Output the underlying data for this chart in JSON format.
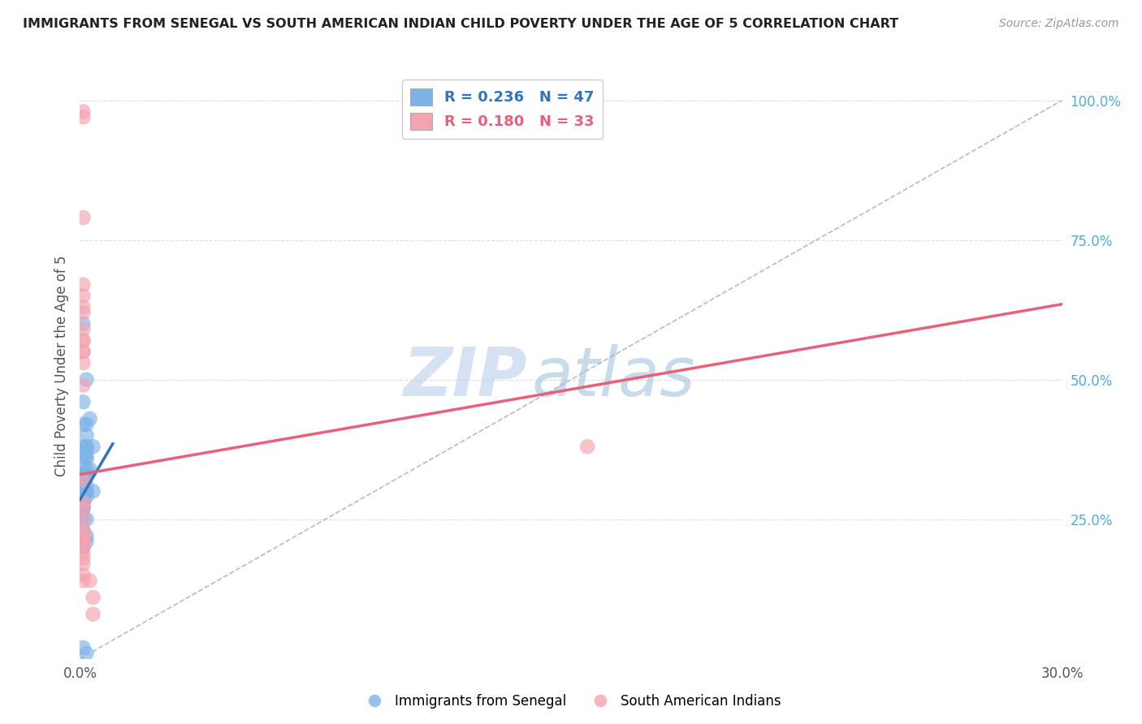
{
  "title": "IMMIGRANTS FROM SENEGAL VS SOUTH AMERICAN INDIAN CHILD POVERTY UNDER THE AGE OF 5 CORRELATION CHART",
  "source": "Source: ZipAtlas.com",
  "ylabel": "Child Poverty Under the Age of 5",
  "y_ticks": [
    0.0,
    0.25,
    0.5,
    0.75,
    1.0
  ],
  "y_tick_labels": [
    "",
    "25.0%",
    "50.0%",
    "75.0%",
    "100.0%"
  ],
  "xlim": [
    0.0,
    0.3
  ],
  "ylim": [
    0.0,
    1.05
  ],
  "blue_R": 0.236,
  "blue_N": 47,
  "pink_R": 0.18,
  "pink_N": 33,
  "blue_color": "#7EB3E8",
  "pink_color": "#F4A3B0",
  "blue_line_color": "#3375BB",
  "pink_line_color": "#E8607A",
  "legend_label_blue": "Immigrants from Senegal",
  "legend_label_pink": "South American Indians",
  "watermark_zip": "ZIP",
  "watermark_atlas": "atlas",
  "blue_line_x": [
    0.0,
    0.01
  ],
  "blue_line_y": [
    0.285,
    0.385
  ],
  "pink_line_x": [
    0.0,
    0.3
  ],
  "pink_line_y": [
    0.33,
    0.635
  ],
  "blue_scatter_x": [
    0.002,
    0.002,
    0.002,
    0.001,
    0.001,
    0.002,
    0.002,
    0.001,
    0.001,
    0.002,
    0.001,
    0.001,
    0.001,
    0.002,
    0.001,
    0.002,
    0.002,
    0.002,
    0.001,
    0.001,
    0.002,
    0.001,
    0.001,
    0.001,
    0.001,
    0.002,
    0.002,
    0.001,
    0.001,
    0.002,
    0.003,
    0.001,
    0.004,
    0.003,
    0.001,
    0.002,
    0.001,
    0.002,
    0.001,
    0.001,
    0.001,
    0.002,
    0.001,
    0.002,
    0.004,
    0.001,
    0.002
  ],
  "blue_scatter_y": [
    0.42,
    0.38,
    0.5,
    0.6,
    0.46,
    0.38,
    0.36,
    0.42,
    0.33,
    0.37,
    0.3,
    0.32,
    0.28,
    0.3,
    0.29,
    0.34,
    0.36,
    0.33,
    0.38,
    0.3,
    0.31,
    0.33,
    0.28,
    0.27,
    0.29,
    0.33,
    0.3,
    0.28,
    0.32,
    0.4,
    0.34,
    0.35,
    0.38,
    0.43,
    0.27,
    0.29,
    0.25,
    0.25,
    0.27,
    0.28,
    0.23,
    0.22,
    0.2,
    0.21,
    0.3,
    0.02,
    0.01
  ],
  "pink_scatter_x": [
    0.001,
    0.001,
    0.001,
    0.001,
    0.001,
    0.001,
    0.001,
    0.001,
    0.001,
    0.001,
    0.001,
    0.001,
    0.001,
    0.001,
    0.001,
    0.001,
    0.001,
    0.001,
    0.001,
    0.001,
    0.001,
    0.001,
    0.001,
    0.001,
    0.001,
    0.001,
    0.001,
    0.001,
    0.001,
    0.155,
    0.003,
    0.004,
    0.004
  ],
  "pink_scatter_y": [
    0.97,
    0.98,
    0.79,
    0.67,
    0.63,
    0.62,
    0.59,
    0.57,
    0.57,
    0.65,
    0.53,
    0.55,
    0.49,
    0.55,
    0.28,
    0.27,
    0.23,
    0.21,
    0.18,
    0.2,
    0.17,
    0.15,
    0.14,
    0.32,
    0.25,
    0.22,
    0.22,
    0.21,
    0.19,
    0.38,
    0.14,
    0.11,
    0.08
  ],
  "dashed_line_x": [
    0.0,
    0.3
  ],
  "dashed_line_y": [
    0.0,
    1.0
  ],
  "background_color": "#FFFFFF",
  "grid_color": "#DDDDDD"
}
